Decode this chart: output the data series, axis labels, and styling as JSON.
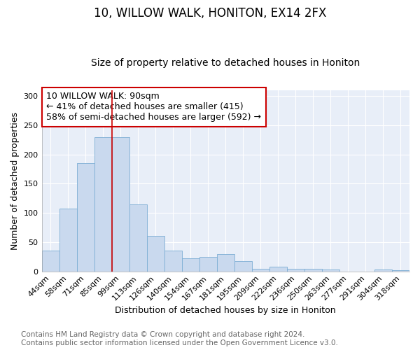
{
  "title": "10, WILLOW WALK, HONITON, EX14 2FX",
  "subtitle": "Size of property relative to detached houses in Honiton",
  "xlabel": "Distribution of detached houses by size in Honiton",
  "ylabel": "Number of detached properties",
  "categories": [
    "44sqm",
    "58sqm",
    "71sqm",
    "85sqm",
    "99sqm",
    "113sqm",
    "126sqm",
    "140sqm",
    "154sqm",
    "167sqm",
    "181sqm",
    "195sqm",
    "209sqm",
    "222sqm",
    "236sqm",
    "250sqm",
    "263sqm",
    "277sqm",
    "291sqm",
    "304sqm",
    "318sqm"
  ],
  "values": [
    35,
    107,
    185,
    230,
    230,
    115,
    60,
    36,
    22,
    25,
    29,
    17,
    4,
    8,
    4,
    4,
    3,
    0,
    0,
    3,
    2
  ],
  "bar_color": "#c9d9ee",
  "bar_edge_color": "#7badd4",
  "vline_x": 3.5,
  "vline_color": "#cc0000",
  "annotation_text": "10 WILLOW WALK: 90sqm\n← 41% of detached houses are smaller (415)\n58% of semi-detached houses are larger (592) →",
  "annotation_box_color": "#ffffff",
  "annotation_box_edge": "#cc0000",
  "ylim": [
    0,
    310
  ],
  "yticks": [
    0,
    50,
    100,
    150,
    200,
    250,
    300
  ],
  "plot_bg_color": "#e8eef8",
  "fig_bg_color": "#ffffff",
  "footer_text": "Contains HM Land Registry data © Crown copyright and database right 2024.\nContains public sector information licensed under the Open Government Licence v3.0.",
  "title_fontsize": 12,
  "subtitle_fontsize": 10,
  "xlabel_fontsize": 9,
  "ylabel_fontsize": 9,
  "tick_fontsize": 8,
  "annotation_fontsize": 9,
  "footer_fontsize": 7.5
}
